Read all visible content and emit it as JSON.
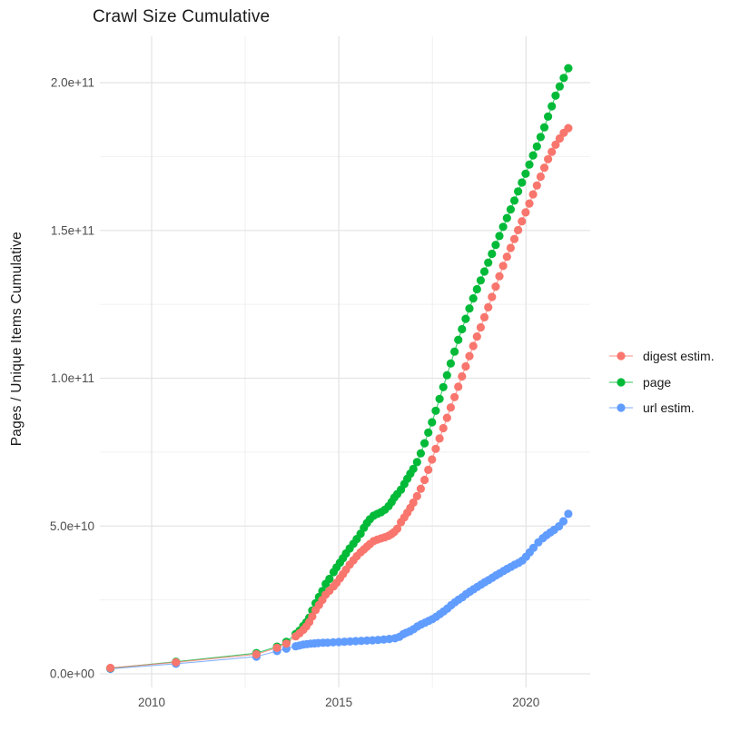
{
  "chart_data": {
    "type": "scatter",
    "title": "Crawl Size Cumulative",
    "xlabel": "",
    "ylabel": "Pages / Unique Items Cumulative",
    "legend_position": "right",
    "grid": true,
    "value_unit": "1e9 (points stored as [year, billions])",
    "x_axis": {
      "range": [
        2008.6,
        2021.7
      ],
      "ticks": [
        {
          "value": 2010,
          "label": "2010"
        },
        {
          "value": 2015,
          "label": "2015"
        },
        {
          "value": 2020,
          "label": "2020"
        }
      ],
      "minor": [
        2012.5,
        2017.5
      ]
    },
    "y_axis": {
      "range": [
        -5000000000,
        215000000000
      ],
      "ticks": [
        {
          "value": 0,
          "label": "0.0e+00"
        },
        {
          "value": 50000000000,
          "label": "5.0e+10"
        },
        {
          "value": 100000000000,
          "label": "1.0e+11"
        },
        {
          "value": 150000000000,
          "label": "1.5e+11"
        },
        {
          "value": 200000000000,
          "label": "2.0e+11"
        }
      ],
      "minor": [
        25000000000,
        75000000000,
        125000000000,
        175000000000
      ]
    },
    "series": [
      {
        "name": "digest estim.",
        "color": "#F8766D",
        "points": [
          [
            2008.9,
            2.0
          ],
          [
            2010.65,
            3.9
          ],
          [
            2012.8,
            6.6
          ],
          [
            2013.35,
            8.8
          ],
          [
            2013.6,
            10.2
          ],
          [
            2013.85,
            12.7
          ],
          [
            2013.95,
            13.7
          ],
          [
            2014.05,
            14.9
          ],
          [
            2014.13,
            16.0
          ],
          [
            2014.21,
            17.5
          ],
          [
            2014.29,
            19.4
          ],
          [
            2014.38,
            21.6
          ],
          [
            2014.47,
            23.3
          ],
          [
            2014.56,
            25.0
          ],
          [
            2014.65,
            26.8
          ],
          [
            2014.75,
            28.1
          ],
          [
            2014.86,
            29.6
          ],
          [
            2014.94,
            30.8
          ],
          [
            2015.03,
            32.3
          ],
          [
            2015.11,
            33.7
          ],
          [
            2015.19,
            35.2
          ],
          [
            2015.29,
            36.9
          ],
          [
            2015.39,
            38.4
          ],
          [
            2015.48,
            39.8
          ],
          [
            2015.58,
            41.1
          ],
          [
            2015.67,
            42.1
          ],
          [
            2015.75,
            43.0
          ],
          [
            2015.83,
            43.9
          ],
          [
            2015.93,
            44.9
          ],
          [
            2016.03,
            45.4
          ],
          [
            2016.13,
            45.8
          ],
          [
            2016.23,
            46.2
          ],
          [
            2016.33,
            46.7
          ],
          [
            2016.41,
            47.3
          ],
          [
            2016.48,
            48.0
          ],
          [
            2016.56,
            49.1
          ],
          [
            2016.66,
            51.3
          ],
          [
            2016.75,
            52.9
          ],
          [
            2016.83,
            54.5
          ],
          [
            2016.91,
            56.1
          ],
          [
            2016.99,
            57.9
          ],
          [
            2017.09,
            60.1
          ],
          [
            2017.19,
            62.6
          ],
          [
            2017.29,
            65.6
          ],
          [
            2017.39,
            69.0
          ],
          [
            2017.49,
            72.5
          ],
          [
            2017.59,
            76.1
          ],
          [
            2017.69,
            79.6
          ],
          [
            2017.79,
            83.1
          ],
          [
            2017.89,
            86.6
          ],
          [
            2017.99,
            90.1
          ],
          [
            2018.09,
            93.6
          ],
          [
            2018.19,
            97.1
          ],
          [
            2018.29,
            100.6
          ],
          [
            2018.39,
            104.0
          ],
          [
            2018.49,
            107.5
          ],
          [
            2018.59,
            110.9
          ],
          [
            2018.69,
            114.1
          ],
          [
            2018.79,
            117.2
          ],
          [
            2018.89,
            120.6
          ],
          [
            2018.99,
            124.0
          ],
          [
            2019.09,
            127.5
          ],
          [
            2019.19,
            131.0
          ],
          [
            2019.29,
            134.5
          ],
          [
            2019.39,
            138.0
          ],
          [
            2019.49,
            141.1
          ],
          [
            2019.59,
            144.1
          ],
          [
            2019.69,
            147.1
          ],
          [
            2019.79,
            150.1
          ],
          [
            2019.89,
            153.1
          ],
          [
            2019.99,
            156.1
          ],
          [
            2020.09,
            159.1
          ],
          [
            2020.19,
            162.2
          ],
          [
            2020.29,
            165.2
          ],
          [
            2020.39,
            168.2
          ],
          [
            2020.49,
            171.2
          ],
          [
            2020.59,
            174.1
          ],
          [
            2020.69,
            176.6
          ],
          [
            2020.79,
            179.0
          ],
          [
            2020.9,
            181.1
          ],
          [
            2021.01,
            183.0
          ],
          [
            2021.13,
            184.6
          ]
        ]
      },
      {
        "name": "page",
        "color": "#00BA38",
        "points": [
          [
            2008.9,
            1.9
          ],
          [
            2010.65,
            4.1
          ],
          [
            2012.8,
            7.0
          ],
          [
            2013.35,
            9.2
          ],
          [
            2013.6,
            10.8
          ],
          [
            2013.85,
            13.5
          ],
          [
            2013.95,
            14.6
          ],
          [
            2014.05,
            16.2
          ],
          [
            2014.13,
            17.4
          ],
          [
            2014.21,
            19.0
          ],
          [
            2014.29,
            21.4
          ],
          [
            2014.38,
            23.9
          ],
          [
            2014.47,
            26.0
          ],
          [
            2014.56,
            28.0
          ],
          [
            2014.65,
            30.4
          ],
          [
            2014.75,
            32.1
          ],
          [
            2014.86,
            34.4
          ],
          [
            2014.94,
            36.0
          ],
          [
            2015.03,
            37.6
          ],
          [
            2015.11,
            39.1
          ],
          [
            2015.19,
            40.7
          ],
          [
            2015.29,
            42.4
          ],
          [
            2015.39,
            44.0
          ],
          [
            2015.48,
            45.6
          ],
          [
            2015.58,
            47.4
          ],
          [
            2015.67,
            49.4
          ],
          [
            2015.75,
            51.0
          ],
          [
            2015.83,
            52.3
          ],
          [
            2015.93,
            53.5
          ],
          [
            2016.03,
            54.1
          ],
          [
            2016.13,
            54.7
          ],
          [
            2016.23,
            55.5
          ],
          [
            2016.33,
            56.7
          ],
          [
            2016.41,
            58.1
          ],
          [
            2016.48,
            59.6
          ],
          [
            2016.56,
            60.8
          ],
          [
            2016.66,
            62.3
          ],
          [
            2016.75,
            64.2
          ],
          [
            2016.83,
            66.0
          ],
          [
            2016.91,
            67.7
          ],
          [
            2016.99,
            69.3
          ],
          [
            2017.09,
            71.6
          ],
          [
            2017.19,
            74.6
          ],
          [
            2017.29,
            78.0
          ],
          [
            2017.39,
            81.6
          ],
          [
            2017.49,
            85.1
          ],
          [
            2017.59,
            89.0
          ],
          [
            2017.69,
            93.0
          ],
          [
            2017.79,
            97.0
          ],
          [
            2017.89,
            101.0
          ],
          [
            2017.99,
            105.0
          ],
          [
            2018.09,
            109.0
          ],
          [
            2018.19,
            113.0
          ],
          [
            2018.29,
            116.6
          ],
          [
            2018.39,
            120.1
          ],
          [
            2018.49,
            123.6
          ],
          [
            2018.59,
            127.0
          ],
          [
            2018.69,
            130.1
          ],
          [
            2018.79,
            133.1
          ],
          [
            2018.89,
            136.1
          ],
          [
            2018.99,
            139.1
          ],
          [
            2019.09,
            142.1
          ],
          [
            2019.19,
            145.1
          ],
          [
            2019.29,
            148.1
          ],
          [
            2019.39,
            151.2
          ],
          [
            2019.49,
            154.2
          ],
          [
            2019.59,
            157.1
          ],
          [
            2019.69,
            160.1
          ],
          [
            2019.79,
            163.2
          ],
          [
            2019.89,
            166.2
          ],
          [
            2019.99,
            169.2
          ],
          [
            2020.09,
            172.3
          ],
          [
            2020.19,
            175.4
          ],
          [
            2020.29,
            178.4
          ],
          [
            2020.39,
            181.6
          ],
          [
            2020.49,
            184.9
          ],
          [
            2020.59,
            188.5
          ],
          [
            2020.69,
            192.0
          ],
          [
            2020.79,
            195.6
          ],
          [
            2020.9,
            198.7
          ],
          [
            2021.01,
            201.6
          ],
          [
            2021.13,
            204.9
          ]
        ]
      },
      {
        "name": "url estim.",
        "color": "#619CFF",
        "points": [
          [
            2008.9,
            1.7
          ],
          [
            2010.65,
            3.4
          ],
          [
            2012.8,
            5.8
          ],
          [
            2013.35,
            7.7
          ],
          [
            2013.6,
            8.5
          ],
          [
            2013.85,
            9.3
          ],
          [
            2013.95,
            9.6
          ],
          [
            2014.05,
            9.9
          ],
          [
            2014.15,
            10.05
          ],
          [
            2014.25,
            10.2
          ],
          [
            2014.35,
            10.3
          ],
          [
            2014.45,
            10.4
          ],
          [
            2014.58,
            10.5
          ],
          [
            2014.7,
            10.55
          ],
          [
            2014.85,
            10.65
          ],
          [
            2015.0,
            10.75
          ],
          [
            2015.15,
            10.85
          ],
          [
            2015.3,
            10.95
          ],
          [
            2015.45,
            11.05
          ],
          [
            2015.6,
            11.15
          ],
          [
            2015.75,
            11.25
          ],
          [
            2015.9,
            11.35
          ],
          [
            2016.05,
            11.45
          ],
          [
            2016.2,
            11.6
          ],
          [
            2016.35,
            11.8
          ],
          [
            2016.5,
            12.0
          ],
          [
            2016.62,
            12.5
          ],
          [
            2016.72,
            13.4
          ],
          [
            2016.8,
            13.9
          ],
          [
            2016.9,
            14.4
          ],
          [
            2017.0,
            15.1
          ],
          [
            2017.1,
            16.0
          ],
          [
            2017.2,
            16.7
          ],
          [
            2017.3,
            17.3
          ],
          [
            2017.4,
            17.9
          ],
          [
            2017.5,
            18.5
          ],
          [
            2017.6,
            19.3
          ],
          [
            2017.7,
            20.2
          ],
          [
            2017.8,
            21.1
          ],
          [
            2017.9,
            22.1
          ],
          [
            2018.0,
            23.2
          ],
          [
            2018.1,
            24.2
          ],
          [
            2018.2,
            25.1
          ],
          [
            2018.3,
            25.9
          ],
          [
            2018.4,
            26.9
          ],
          [
            2018.5,
            27.8
          ],
          [
            2018.6,
            28.6
          ],
          [
            2018.7,
            29.4
          ],
          [
            2018.8,
            30.2
          ],
          [
            2018.9,
            31.0
          ],
          [
            2019.0,
            31.7
          ],
          [
            2019.1,
            32.5
          ],
          [
            2019.2,
            33.3
          ],
          [
            2019.3,
            34.0
          ],
          [
            2019.4,
            34.8
          ],
          [
            2019.5,
            35.5
          ],
          [
            2019.6,
            36.2
          ],
          [
            2019.7,
            36.9
          ],
          [
            2019.8,
            37.5
          ],
          [
            2019.9,
            38.3
          ],
          [
            2020.0,
            39.6
          ],
          [
            2020.1,
            41.1
          ],
          [
            2020.2,
            42.6
          ],
          [
            2020.33,
            44.5
          ],
          [
            2020.45,
            45.9
          ],
          [
            2020.55,
            46.9
          ],
          [
            2020.65,
            47.8
          ],
          [
            2020.75,
            48.7
          ],
          [
            2020.88,
            49.9
          ],
          [
            2021.0,
            51.6
          ],
          [
            2021.13,
            54.1
          ]
        ]
      }
    ],
    "style": {
      "grid_major_color": "#e4e4e4",
      "grid_minor_color": "#f0f0f0",
      "tick_label_color": "#4d4d4d",
      "text_color": "#1a1a1a",
      "background": "#ffffff"
    }
  }
}
